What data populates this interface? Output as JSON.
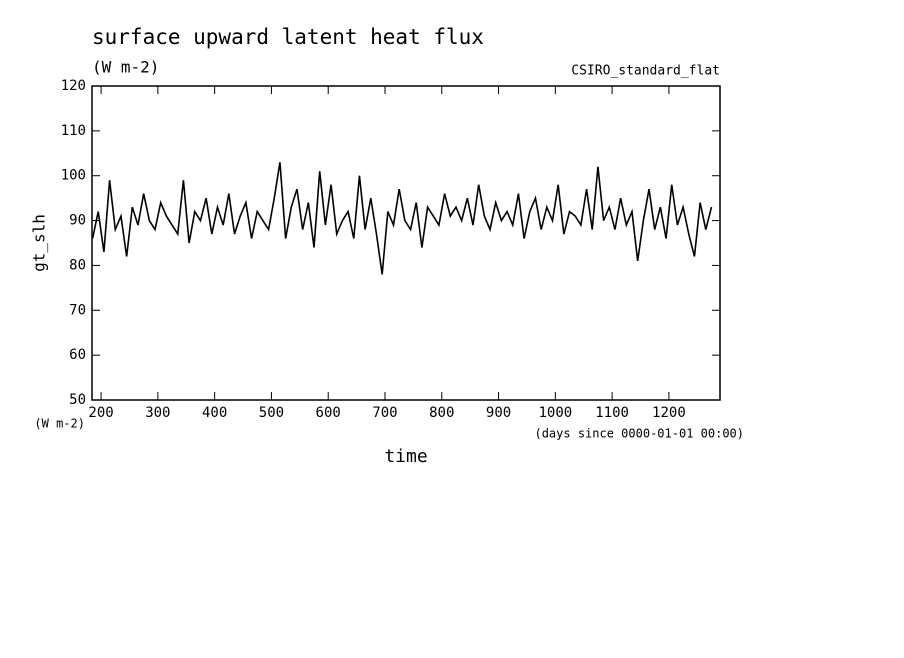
{
  "chart_data": {
    "type": "line",
    "title": "surface upward latent heat flux",
    "subtitle": "(W m-2)",
    "annotation": "CSIRO_standard_flat",
    "y_label": "gt_slh",
    "y_unit": "(W m-2)",
    "x_label": "time",
    "x_unit": "(days since 0000-01-01 00:00)",
    "xlim": [
      184,
      1290
    ],
    "ylim": [
      50,
      120
    ],
    "xticks": [
      200,
      300,
      400,
      500,
      600,
      700,
      800,
      900,
      1000,
      1100,
      1200
    ],
    "yticks": [
      50,
      60,
      70,
      80,
      90,
      100,
      110,
      120
    ],
    "x": [
      185,
      195,
      205,
      215,
      225,
      235,
      245,
      255,
      265,
      275,
      285,
      295,
      305,
      315,
      325,
      335,
      345,
      355,
      365,
      375,
      385,
      395,
      405,
      415,
      425,
      435,
      445,
      455,
      465,
      475,
      485,
      495,
      505,
      515,
      525,
      535,
      545,
      555,
      565,
      575,
      585,
      595,
      605,
      615,
      625,
      635,
      645,
      655,
      665,
      675,
      685,
      695,
      705,
      715,
      725,
      735,
      745,
      755,
      765,
      775,
      785,
      795,
      805,
      815,
      825,
      835,
      845,
      855,
      865,
      875,
      885,
      895,
      905,
      915,
      925,
      935,
      945,
      955,
      965,
      975,
      985,
      995,
      1005,
      1015,
      1025,
      1035,
      1045,
      1055,
      1065,
      1075,
      1085,
      1095,
      1105,
      1115,
      1125,
      1135,
      1145,
      1155,
      1165,
      1175,
      1185,
      1195,
      1205,
      1215,
      1225,
      1235,
      1245,
      1255,
      1265,
      1275
    ],
    "series": [
      {
        "name": "gt_slh",
        "color": "#000000",
        "values": [
          86,
          92,
          83,
          99,
          88,
          91,
          82,
          93,
          89,
          96,
          90,
          88,
          94,
          91,
          89,
          87,
          99,
          85,
          92,
          90,
          95,
          87,
          93,
          89,
          96,
          87,
          91,
          94,
          86,
          92,
          90,
          88,
          95,
          103,
          86,
          93,
          97,
          88,
          94,
          84,
          101,
          89,
          98,
          87,
          90,
          92,
          86,
          100,
          88,
          95,
          87,
          78,
          92,
          89,
          97,
          90,
          88,
          94,
          84,
          93,
          91,
          89,
          96,
          91,
          93,
          90,
          95,
          89,
          98,
          91,
          88,
          94,
          90,
          92,
          89,
          96,
          86,
          92,
          95,
          88,
          93,
          90,
          98,
          87,
          92,
          91,
          89,
          97,
          88,
          102,
          90,
          93,
          88,
          95,
          89,
          92,
          81,
          90,
          97,
          88,
          93,
          86,
          98,
          89,
          93,
          87,
          82,
          94,
          88,
          93
        ]
      }
    ]
  }
}
